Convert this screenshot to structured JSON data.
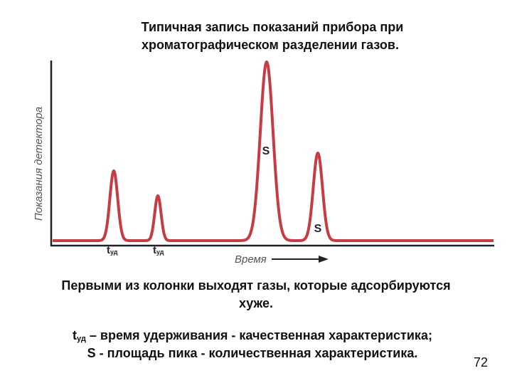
{
  "title": [
    "Типичная запись показаний прибора при",
    "хроматографическом разделении газов."
  ],
  "chart": {
    "y_label": "Показания детектора",
    "x_label": "Время",
    "retention_labels": [
      {
        "symbol": "t",
        "subscript": "уд"
      },
      {
        "symbol": "t",
        "subscript": "уд"
      }
    ],
    "area_labels": [
      "S",
      "S"
    ]
  },
  "note": [
    "Первыми из колонки выходят газы, которые адсорбируются",
    "хуже."
  ],
  "definitions": [
    {
      "symbol": "t",
      "subscript": "уд",
      "text": " – время удерживания - качественная характеристика;"
    },
    {
      "text": "S - площадь пика - количественная характеристика."
    }
  ],
  "page_number": "72"
}
